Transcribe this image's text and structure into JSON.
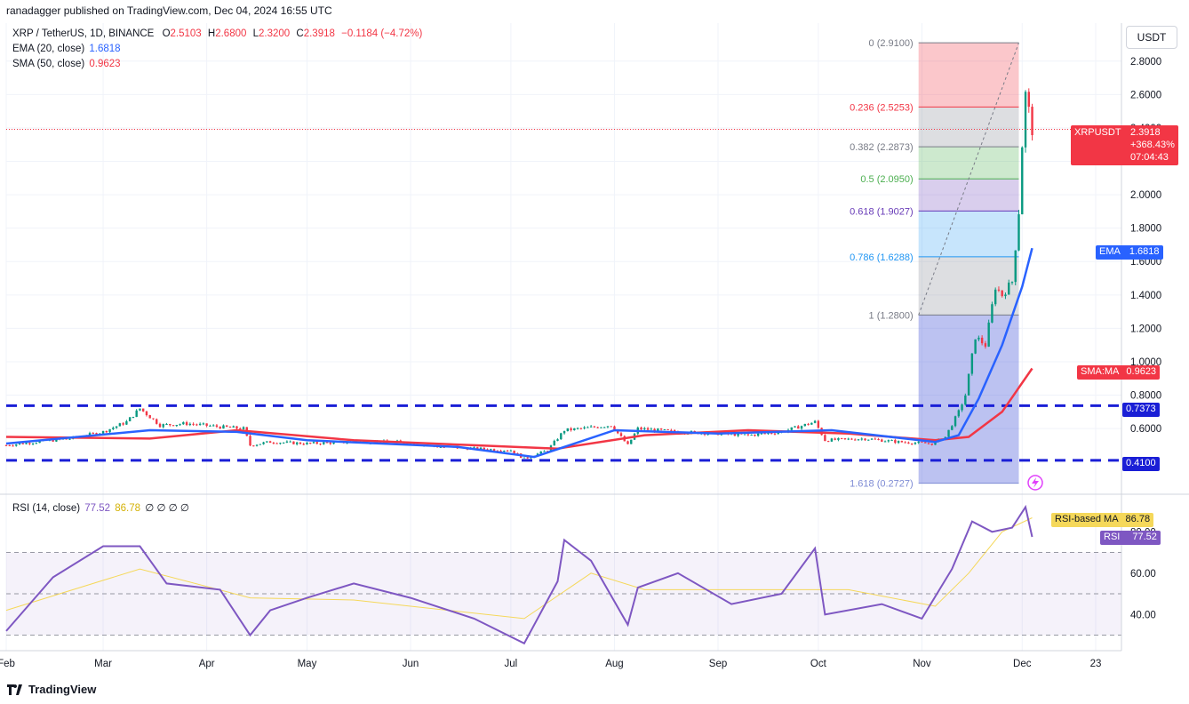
{
  "header": {
    "publisher_line": "ranadagger published on TradingView.com, Dec 04, 2024 16:55 UTC"
  },
  "symbol": {
    "title": "XRP / TetherUS, 1D, BINANCE",
    "ohlc": {
      "o_label": "O",
      "o": "2.5103",
      "h_label": "H",
      "h": "2.6800",
      "l_label": "L",
      "l": "2.3200",
      "c_label": "C",
      "c": "2.3918",
      "change": "−0.1184 (−4.72%)"
    }
  },
  "indicators": {
    "ema": {
      "label": "EMA (20, close)",
      "value": "1.6818",
      "tag": "EMA",
      "color": "#2962ff"
    },
    "sma": {
      "label": "SMA (50, close)",
      "value": "0.9623",
      "tag": "SMA:MA",
      "color": "#f23645"
    },
    "rsi": {
      "label": "RSI (14, close)",
      "value": "77.52",
      "ma_value": "86.78",
      "extra": "∅ ∅ ∅ ∅",
      "tag": "RSI",
      "ma_tag": "RSI-based MA",
      "color": "#7e57c2",
      "ma_color": "#f5d85a"
    }
  },
  "price_tag": {
    "symbol": "XRPUSDT",
    "price": "2.3918",
    "change": "+368.43%",
    "countdown": "07:04:43",
    "color": "#f23645"
  },
  "currency": "USDT",
  "fib_levels": [
    {
      "ratio": "0",
      "price": "2.9100",
      "label": "0 (2.9100)",
      "color": "#787b86"
    },
    {
      "ratio": "0.236",
      "price": "2.5253",
      "label": "0.236 (2.5253)",
      "color": "#f23645"
    },
    {
      "ratio": "0.382",
      "price": "2.2873",
      "label": "0.382 (2.2873)",
      "color": "#787b86"
    },
    {
      "ratio": "0.5",
      "price": "2.0950",
      "label": "0.5 (2.0950)",
      "color": "#4caf50"
    },
    {
      "ratio": "0.618",
      "price": "1.9027",
      "label": "0.618 (1.9027)",
      "color": "#673ab7"
    },
    {
      "ratio": "0.786",
      "price": "1.6288",
      "label": "0.786 (1.6288)",
      "color": "#2196f3"
    },
    {
      "ratio": "1",
      "price": "1.2800",
      "label": "1 (1.2800)",
      "color": "#787b86"
    },
    {
      "ratio": "1.618",
      "price": "0.2727",
      "label": "1.618 (0.2727)",
      "color": "#7e8bd4"
    }
  ],
  "support_lines": [
    {
      "price": 0.7373,
      "label": "0.7373"
    },
    {
      "price": 0.41,
      "label": "0.4100"
    }
  ],
  "chart_data": {
    "type": "candlestick",
    "title": "XRP / TetherUS, 1D, BINANCE",
    "price_axis": {
      "ticks": [
        "2.8000",
        "2.6000",
        "2.4000",
        "2.2000",
        "2.0000",
        "1.8000",
        "1.6000",
        "1.4000",
        "1.2000",
        "1.0000",
        "0.8000",
        "0.6000"
      ],
      "ylim": [
        0.26,
        3.0
      ]
    },
    "rsi_axis": {
      "ticks": [
        "80.00",
        "60.00",
        "40.00"
      ],
      "bands": [
        70,
        50,
        30
      ]
    },
    "time_axis": {
      "ticks": [
        "Feb",
        "Mar",
        "Apr",
        "May",
        "Jun",
        "Jul",
        "Aug",
        "Sep",
        "Oct",
        "Nov",
        "Dec",
        "23"
      ]
    },
    "price_path_points": [
      [
        "2024-02-01",
        0.5
      ],
      [
        "2024-02-10",
        0.52
      ],
      [
        "2024-02-20",
        0.54
      ],
      [
        "2024-03-01",
        0.58
      ],
      [
        "2024-03-08",
        0.64
      ],
      [
        "2024-03-12",
        0.72
      ],
      [
        "2024-03-18",
        0.62
      ],
      [
        "2024-03-26",
        0.63
      ],
      [
        "2024-04-05",
        0.61
      ],
      [
        "2024-04-12",
        0.6
      ],
      [
        "2024-04-14",
        0.5
      ],
      [
        "2024-04-20",
        0.52
      ],
      [
        "2024-05-01",
        0.51
      ],
      [
        "2024-05-15",
        0.52
      ],
      [
        "2024-05-28",
        0.52
      ],
      [
        "2024-06-10",
        0.49
      ],
      [
        "2024-06-20",
        0.48
      ],
      [
        "2024-07-01",
        0.47
      ],
      [
        "2024-07-05",
        0.42
      ],
      [
        "2024-07-12",
        0.47
      ],
      [
        "2024-07-17",
        0.59
      ],
      [
        "2024-07-22",
        0.6
      ],
      [
        "2024-07-31",
        0.62
      ],
      [
        "2024-08-05",
        0.5
      ],
      [
        "2024-08-08",
        0.6
      ],
      [
        "2024-08-20",
        0.58
      ],
      [
        "2024-09-01",
        0.57
      ],
      [
        "2024-09-10",
        0.56
      ],
      [
        "2024-09-20",
        0.58
      ],
      [
        "2024-09-30",
        0.64
      ],
      [
        "2024-10-03",
        0.53
      ],
      [
        "2024-10-15",
        0.54
      ],
      [
        "2024-10-25",
        0.52
      ],
      [
        "2024-11-04",
        0.51
      ],
      [
        "2024-11-08",
        0.55
      ],
      [
        "2024-11-12",
        0.7
      ],
      [
        "2024-11-14",
        0.8
      ],
      [
        "2024-11-17",
        1.15
      ],
      [
        "2024-11-20",
        1.1
      ],
      [
        "2024-11-23",
        1.45
      ],
      [
        "2024-11-25",
        1.4
      ],
      [
        "2024-11-28",
        1.48
      ],
      [
        "2024-11-30",
        1.9
      ],
      [
        "2024-12-01",
        2.3
      ],
      [
        "2024-12-02",
        2.6
      ],
      [
        "2024-12-03",
        2.5
      ],
      [
        "2024-12-04",
        2.39
      ]
    ],
    "ema20_path_points": [
      [
        "2024-02-01",
        0.51
      ],
      [
        "2024-03-15",
        0.59
      ],
      [
        "2024-04-10",
        0.58
      ],
      [
        "2024-05-01",
        0.53
      ],
      [
        "2024-06-15",
        0.49
      ],
      [
        "2024-07-08",
        0.43
      ],
      [
        "2024-08-01",
        0.59
      ],
      [
        "2024-09-01",
        0.57
      ],
      [
        "2024-10-05",
        0.59
      ],
      [
        "2024-11-05",
        0.52
      ],
      [
        "2024-11-12",
        0.56
      ],
      [
        "2024-11-18",
        0.78
      ],
      [
        "2024-11-25",
        1.1
      ],
      [
        "2024-12-01",
        1.45
      ],
      [
        "2024-12-04",
        1.68
      ]
    ],
    "sma50_path_points": [
      [
        "2024-02-01",
        0.55
      ],
      [
        "2024-03-15",
        0.54
      ],
      [
        "2024-04-10",
        0.59
      ],
      [
        "2024-05-15",
        0.53
      ],
      [
        "2024-06-20",
        0.5
      ],
      [
        "2024-07-15",
        0.48
      ],
      [
        "2024-08-10",
        0.56
      ],
      [
        "2024-09-10",
        0.59
      ],
      [
        "2024-10-10",
        0.57
      ],
      [
        "2024-11-05",
        0.53
      ],
      [
        "2024-11-15",
        0.55
      ],
      [
        "2024-11-25",
        0.7
      ],
      [
        "2024-12-04",
        0.96
      ]
    ],
    "rsi_path_points": [
      [
        "2024-02-01",
        32
      ],
      [
        "2024-02-15",
        58
      ],
      [
        "2024-03-01",
        73
      ],
      [
        "2024-03-12",
        73
      ],
      [
        "2024-03-20",
        55
      ],
      [
        "2024-04-05",
        52
      ],
      [
        "2024-04-14",
        30
      ],
      [
        "2024-04-20",
        42
      ],
      [
        "2024-05-01",
        48
      ],
      [
        "2024-05-15",
        55
      ],
      [
        "2024-06-01",
        48
      ],
      [
        "2024-06-20",
        38
      ],
      [
        "2024-07-05",
        26
      ],
      [
        "2024-07-15",
        56
      ],
      [
        "2024-07-17",
        76
      ],
      [
        "2024-07-25",
        66
      ],
      [
        "2024-08-05",
        35
      ],
      [
        "2024-08-08",
        53
      ],
      [
        "2024-08-20",
        60
      ],
      [
        "2024-09-05",
        45
      ],
      [
        "2024-09-20",
        50
      ],
      [
        "2024-09-30",
        72
      ],
      [
        "2024-10-03",
        40
      ],
      [
        "2024-10-20",
        45
      ],
      [
        "2024-11-01",
        38
      ],
      [
        "2024-11-10",
        62
      ],
      [
        "2024-11-16",
        85
      ],
      [
        "2024-11-22",
        80
      ],
      [
        "2024-11-28",
        82
      ],
      [
        "2024-12-02",
        92
      ],
      [
        "2024-12-04",
        77.52
      ]
    ],
    "rsi_ma_path_points": [
      [
        "2024-02-01",
        42
      ],
      [
        "2024-03-12",
        62
      ],
      [
        "2024-04-14",
        48
      ],
      [
        "2024-05-15",
        47
      ],
      [
        "2024-07-05",
        38
      ],
      [
        "2024-07-25",
        60
      ],
      [
        "2024-08-10",
        52
      ],
      [
        "2024-09-10",
        52
      ],
      [
        "2024-10-10",
        52
      ],
      [
        "2024-11-05",
        44
      ],
      [
        "2024-11-15",
        60
      ],
      [
        "2024-11-25",
        80
      ],
      [
        "2024-12-04",
        86.78
      ]
    ]
  }
}
